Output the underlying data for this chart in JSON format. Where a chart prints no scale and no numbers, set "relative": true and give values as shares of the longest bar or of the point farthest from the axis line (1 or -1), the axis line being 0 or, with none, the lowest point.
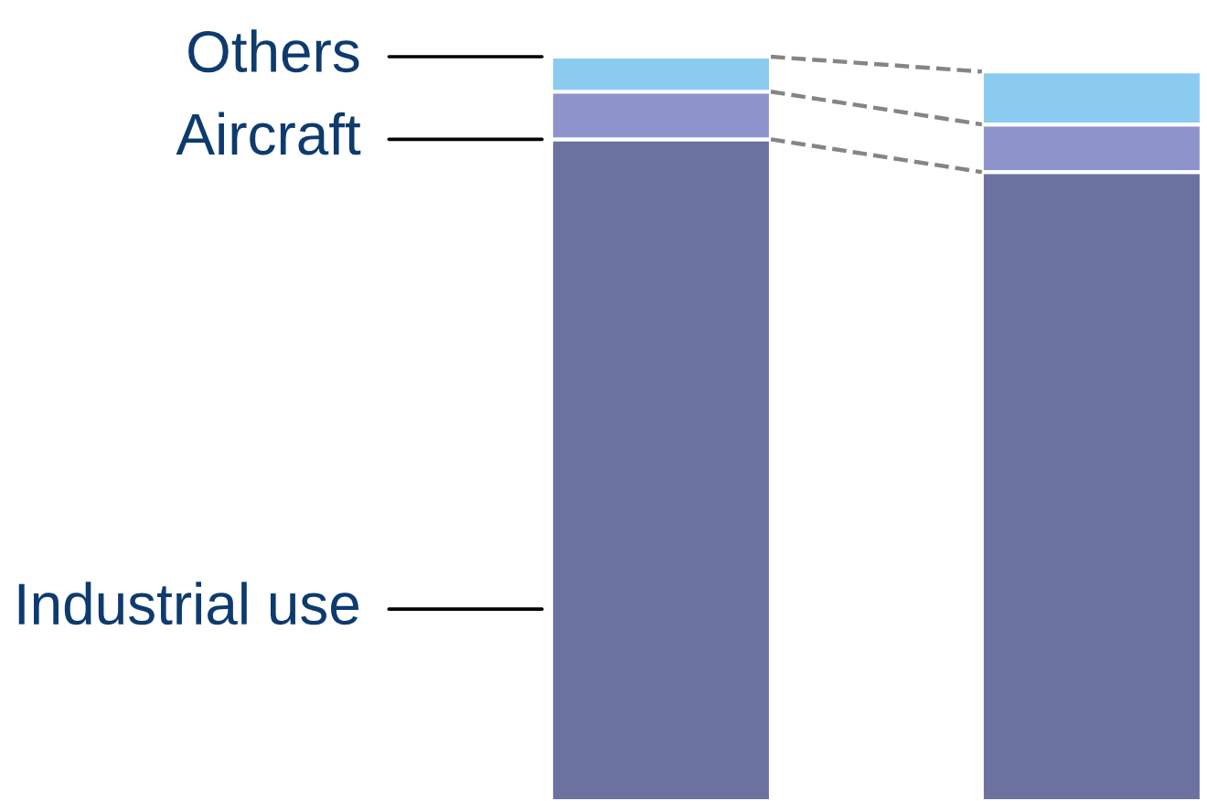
{
  "chart_data": {
    "type": "bar",
    "stacked": true,
    "relative": true,
    "categories": [
      null,
      null
    ],
    "series": [
      {
        "name": "Industrial use",
        "color": "#6c72a0",
        "values": [
          0.889,
          0.845
        ]
      },
      {
        "name": "Aircraft",
        "color": "#8e94cb",
        "values": [
          0.064,
          0.064
        ]
      },
      {
        "name": "Others",
        "color": "#8ccbf0",
        "values": [
          0.047,
          0.071
        ]
      }
    ]
  }
}
